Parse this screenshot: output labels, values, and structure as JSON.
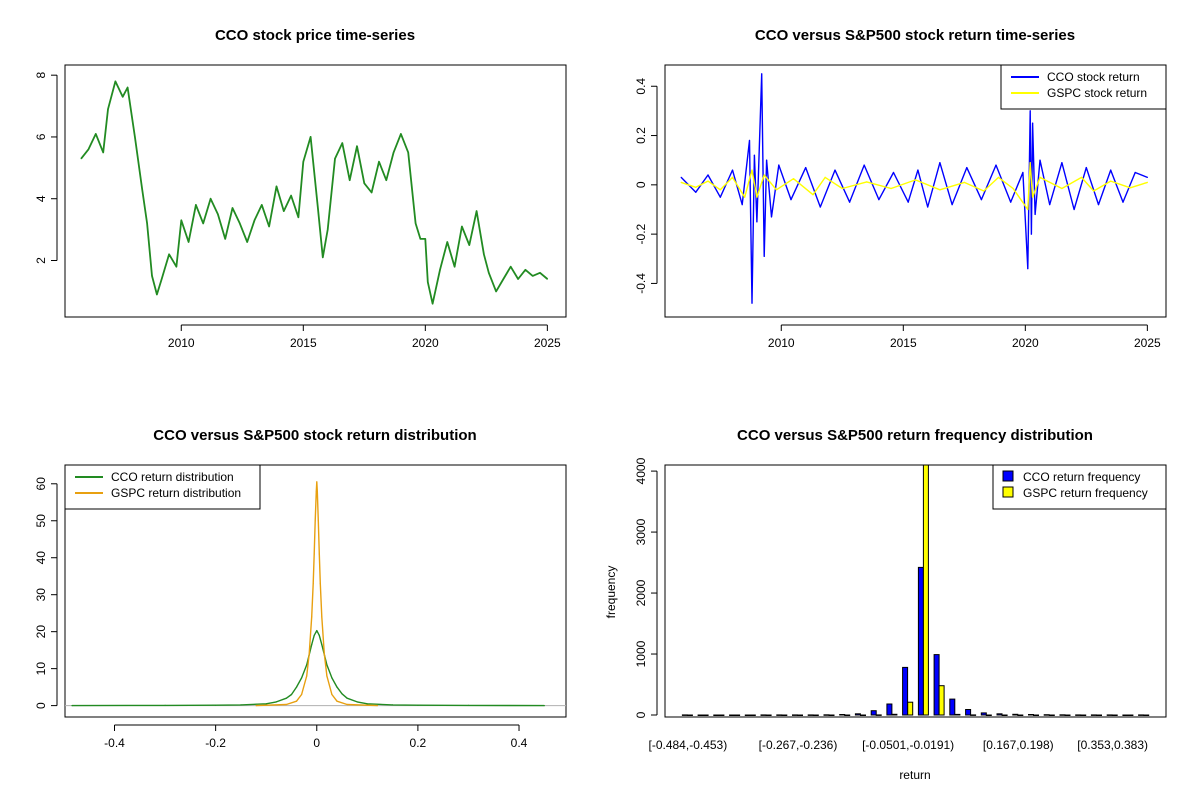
{
  "chart_data": [
    {
      "type": "line",
      "title": "CCO stock price time-series",
      "xlabel": "",
      "ylabel": "",
      "xlim": [
        2005.4,
        2025.6
      ],
      "ylim": [
        0.3,
        8.2
      ],
      "xticks": [
        2010,
        2015,
        2020,
        2025
      ],
      "yticks": [
        2,
        4,
        6,
        8
      ],
      "legend": null,
      "series": [
        {
          "color": "#228b22",
          "x": [
            2005.9,
            2006.2,
            2006.5,
            2006.8,
            2007.0,
            2007.3,
            2007.6,
            2007.8,
            2008.1,
            2008.4,
            2008.6,
            2008.8,
            2009.0,
            2009.2,
            2009.5,
            2009.8,
            2010.0,
            2010.3,
            2010.6,
            2010.9,
            2011.2,
            2011.5,
            2011.8,
            2012.1,
            2012.4,
            2012.7,
            2013.0,
            2013.3,
            2013.6,
            2013.9,
            2014.2,
            2014.5,
            2014.8,
            2015.0,
            2015.3,
            2015.6,
            2015.8,
            2016.0,
            2016.3,
            2016.6,
            2016.9,
            2017.2,
            2017.5,
            2017.8,
            2018.1,
            2018.4,
            2018.7,
            2019.0,
            2019.3,
            2019.6,
            2019.8,
            2020.0,
            2020.1,
            2020.3,
            2020.6,
            2020.9,
            2021.2,
            2021.5,
            2021.8,
            2022.1,
            2022.4,
            2022.6,
            2022.9,
            2023.2,
            2023.5,
            2023.8,
            2024.1,
            2024.4,
            2024.7,
            2025.0
          ],
          "values": [
            5.3,
            5.6,
            6.1,
            5.5,
            6.9,
            7.8,
            7.3,
            7.6,
            6.0,
            4.3,
            3.2,
            1.5,
            0.9,
            1.4,
            2.2,
            1.8,
            3.3,
            2.6,
            3.8,
            3.2,
            4.0,
            3.5,
            2.7,
            3.7,
            3.2,
            2.6,
            3.3,
            3.8,
            3.1,
            4.4,
            3.6,
            4.1,
            3.4,
            5.2,
            6.0,
            3.7,
            2.1,
            3.0,
            5.3,
            5.8,
            4.6,
            5.7,
            4.5,
            4.2,
            5.2,
            4.6,
            5.5,
            6.1,
            5.5,
            3.2,
            2.7,
            2.7,
            1.3,
            0.6,
            1.7,
            2.6,
            1.8,
            3.1,
            2.5,
            3.6,
            2.2,
            1.6,
            1.0,
            1.4,
            1.8,
            1.4,
            1.7,
            1.5,
            1.6,
            1.4
          ]
        }
      ]
    },
    {
      "type": "line",
      "title": "CCO versus S&P500 stock return time-series",
      "xlabel": "",
      "ylabel": "",
      "xlim": [
        2005.4,
        2025.6
      ],
      "ylim": [
        -0.52,
        0.47
      ],
      "xticks": [
        2010,
        2015,
        2020,
        2025
      ],
      "yticks": [
        -0.4,
        -0.2,
        0.0,
        0.2,
        0.4
      ],
      "legend": "top-right",
      "series": [
        {
          "name": "CCO stock return",
          "color": "#0000ff",
          "x": [
            2005.9,
            2006.5,
            2007.0,
            2007.5,
            2008.0,
            2008.4,
            2008.7,
            2008.8,
            2008.9,
            2009.0,
            2009.2,
            2009.3,
            2009.4,
            2009.6,
            2009.9,
            2010.4,
            2011.0,
            2011.6,
            2012.2,
            2012.8,
            2013.4,
            2014.0,
            2014.6,
            2015.2,
            2015.6,
            2016.0,
            2016.5,
            2017.0,
            2017.6,
            2018.2,
            2018.8,
            2019.4,
            2019.9,
            2020.1,
            2020.2,
            2020.25,
            2020.3,
            2020.4,
            2020.6,
            2021.0,
            2021.5,
            2022.0,
            2022.5,
            2023.0,
            2023.5,
            2024.0,
            2024.5,
            2025.0
          ],
          "values": [
            0.03,
            -0.03,
            0.04,
            -0.05,
            0.06,
            -0.08,
            0.18,
            -0.48,
            0.12,
            -0.15,
            0.45,
            -0.29,
            0.1,
            -0.13,
            0.08,
            -0.06,
            0.07,
            -0.09,
            0.06,
            -0.07,
            0.08,
            -0.06,
            0.05,
            -0.07,
            0.06,
            -0.09,
            0.09,
            -0.08,
            0.07,
            -0.06,
            0.08,
            -0.07,
            0.05,
            -0.34,
            0.3,
            -0.2,
            0.25,
            -0.12,
            0.1,
            -0.08,
            0.09,
            -0.1,
            0.07,
            -0.08,
            0.06,
            -0.07,
            0.05,
            0.03
          ]
        },
        {
          "name": "GSPC stock return",
          "color": "#ffff00",
          "x": [
            2005.9,
            2006.5,
            2007.0,
            2007.5,
            2008.0,
            2008.5,
            2008.8,
            2009.0,
            2009.3,
            2009.8,
            2010.5,
            2011.3,
            2011.8,
            2012.5,
            2013.5,
            2014.5,
            2015.5,
            2016.5,
            2017.5,
            2018.3,
            2018.9,
            2019.5,
            2020.1,
            2020.2,
            2020.3,
            2020.6,
            2021.5,
            2022.3,
            2022.8,
            2023.5,
            2024.3,
            2025.0
          ],
          "values": [
            0.01,
            -0.01,
            0.015,
            -0.02,
            0.03,
            -0.05,
            0.06,
            -0.05,
            0.04,
            -0.02,
            0.025,
            -0.04,
            0.03,
            -0.015,
            0.012,
            -0.015,
            0.02,
            -0.02,
            0.01,
            -0.025,
            0.03,
            -0.015,
            -0.1,
            0.09,
            -0.05,
            0.03,
            -0.015,
            0.03,
            -0.025,
            0.015,
            -0.012,
            0.01
          ]
        }
      ]
    },
    {
      "type": "line",
      "title": "CCO versus S&P500 stock return distribution",
      "xlabel": "",
      "ylabel": "",
      "xlim": [
        -0.49,
        0.485
      ],
      "ylim": [
        -2,
        64
      ],
      "xticks": [
        -0.4,
        -0.2,
        0.0,
        0.2,
        0.4
      ],
      "yticks": [
        0,
        10,
        20,
        30,
        40,
        50,
        60
      ],
      "legend": "top-left",
      "series": [
        {
          "name": "CCO return distribution",
          "color": "#228b22",
          "x": [
            -0.484,
            -0.3,
            -0.2,
            -0.15,
            -0.1,
            -0.08,
            -0.06,
            -0.05,
            -0.04,
            -0.03,
            -0.02,
            -0.01,
            -0.005,
            0.0,
            0.005,
            0.01,
            0.02,
            0.03,
            0.04,
            0.05,
            0.06,
            0.08,
            0.1,
            0.15,
            0.2,
            0.3,
            0.45
          ],
          "values": [
            0,
            0.05,
            0.1,
            0.2,
            0.5,
            1.0,
            2.0,
            3.0,
            5.0,
            7.5,
            11.0,
            16.5,
            19.0,
            20.3,
            19.0,
            16.5,
            11.0,
            7.5,
            5.0,
            3.2,
            2.0,
            1.0,
            0.5,
            0.2,
            0.1,
            0.05,
            0
          ]
        },
        {
          "name": "GSPC return distribution",
          "color": "#e8a010",
          "x": [
            -0.12,
            -0.06,
            -0.04,
            -0.03,
            -0.02,
            -0.015,
            -0.01,
            -0.007,
            -0.005,
            -0.003,
            -0.001,
            0.0,
            0.001,
            0.003,
            0.005,
            0.007,
            0.01,
            0.015,
            0.02,
            0.03,
            0.04,
            0.06,
            0.12
          ],
          "values": [
            0,
            0.3,
            1.2,
            3.0,
            8.0,
            14.0,
            24.0,
            33.0,
            41.0,
            50.0,
            58.0,
            60.5,
            58.0,
            50.0,
            41.0,
            33.0,
            24.0,
            14.0,
            8.0,
            3.0,
            1.2,
            0.3,
            0
          ]
        }
      ]
    },
    {
      "type": "bar",
      "title": "CCO versus S&P500 return frequency distribution",
      "xlabel": "return",
      "ylabel": "frequency",
      "ylim": [
        0,
        4100
      ],
      "yticks": [
        0,
        1000,
        2000,
        3000,
        4000
      ],
      "legend": "top-right",
      "categories": [
        "[-0.484,-0.453)",
        "[-0.453,-0.422)",
        "[-0.422,-0.391)",
        "[-0.391,-0.36)",
        "[-0.36,-0.329)",
        "[-0.329,-0.298)",
        "[-0.298,-0.267)",
        "[-0.267,-0.236)",
        "[-0.236,-0.205)",
        "[-0.205,-0.174)",
        "[-0.174,-0.143)",
        "[-0.143,-0.112)",
        "[-0.112,-0.0812)",
        "[-0.0812,-0.0501)",
        "[-0.0501,-0.0191)",
        "[-0.0191,0.012)",
        "[0.012,0.043)",
        "[0.043,0.074)",
        "[0.074,0.105)",
        "[0.105,0.136)",
        "[0.136,0.167)",
        "[0.167,0.198)",
        "[0.198,0.229)",
        "[0.229,0.26)",
        "[0.26,0.291)",
        "[0.291,0.322)",
        "[0.322,0.353)",
        "[0.353,0.383)",
        "[0.383,0.414)",
        "[0.414,0.445)"
      ],
      "shown_tick_labels": [
        "[-0.484,-0.453)",
        "[-0.267,-0.236)",
        "[-0.0501,-0.0191)",
        "[0.167,0.198)",
        "[0.353,0.383)"
      ],
      "series": [
        {
          "name": "CCO return frequency",
          "color": "#0000ff",
          "values": [
            2,
            0,
            0,
            0,
            0,
            1,
            1,
            1,
            2,
            3,
            8,
            20,
            70,
            180,
            780,
            2420,
            990,
            260,
            90,
            35,
            20,
            12,
            8,
            5,
            3,
            2,
            1,
            1,
            0,
            1
          ]
        },
        {
          "name": "GSPC return frequency",
          "color": "#ffff00",
          "values": [
            0,
            0,
            0,
            0,
            0,
            0,
            0,
            0,
            0,
            0,
            0,
            0,
            2,
            12,
            210,
            4100,
            480,
            10,
            2,
            0,
            0,
            0,
            0,
            0,
            0,
            0,
            0,
            0,
            0,
            0
          ]
        }
      ]
    }
  ]
}
